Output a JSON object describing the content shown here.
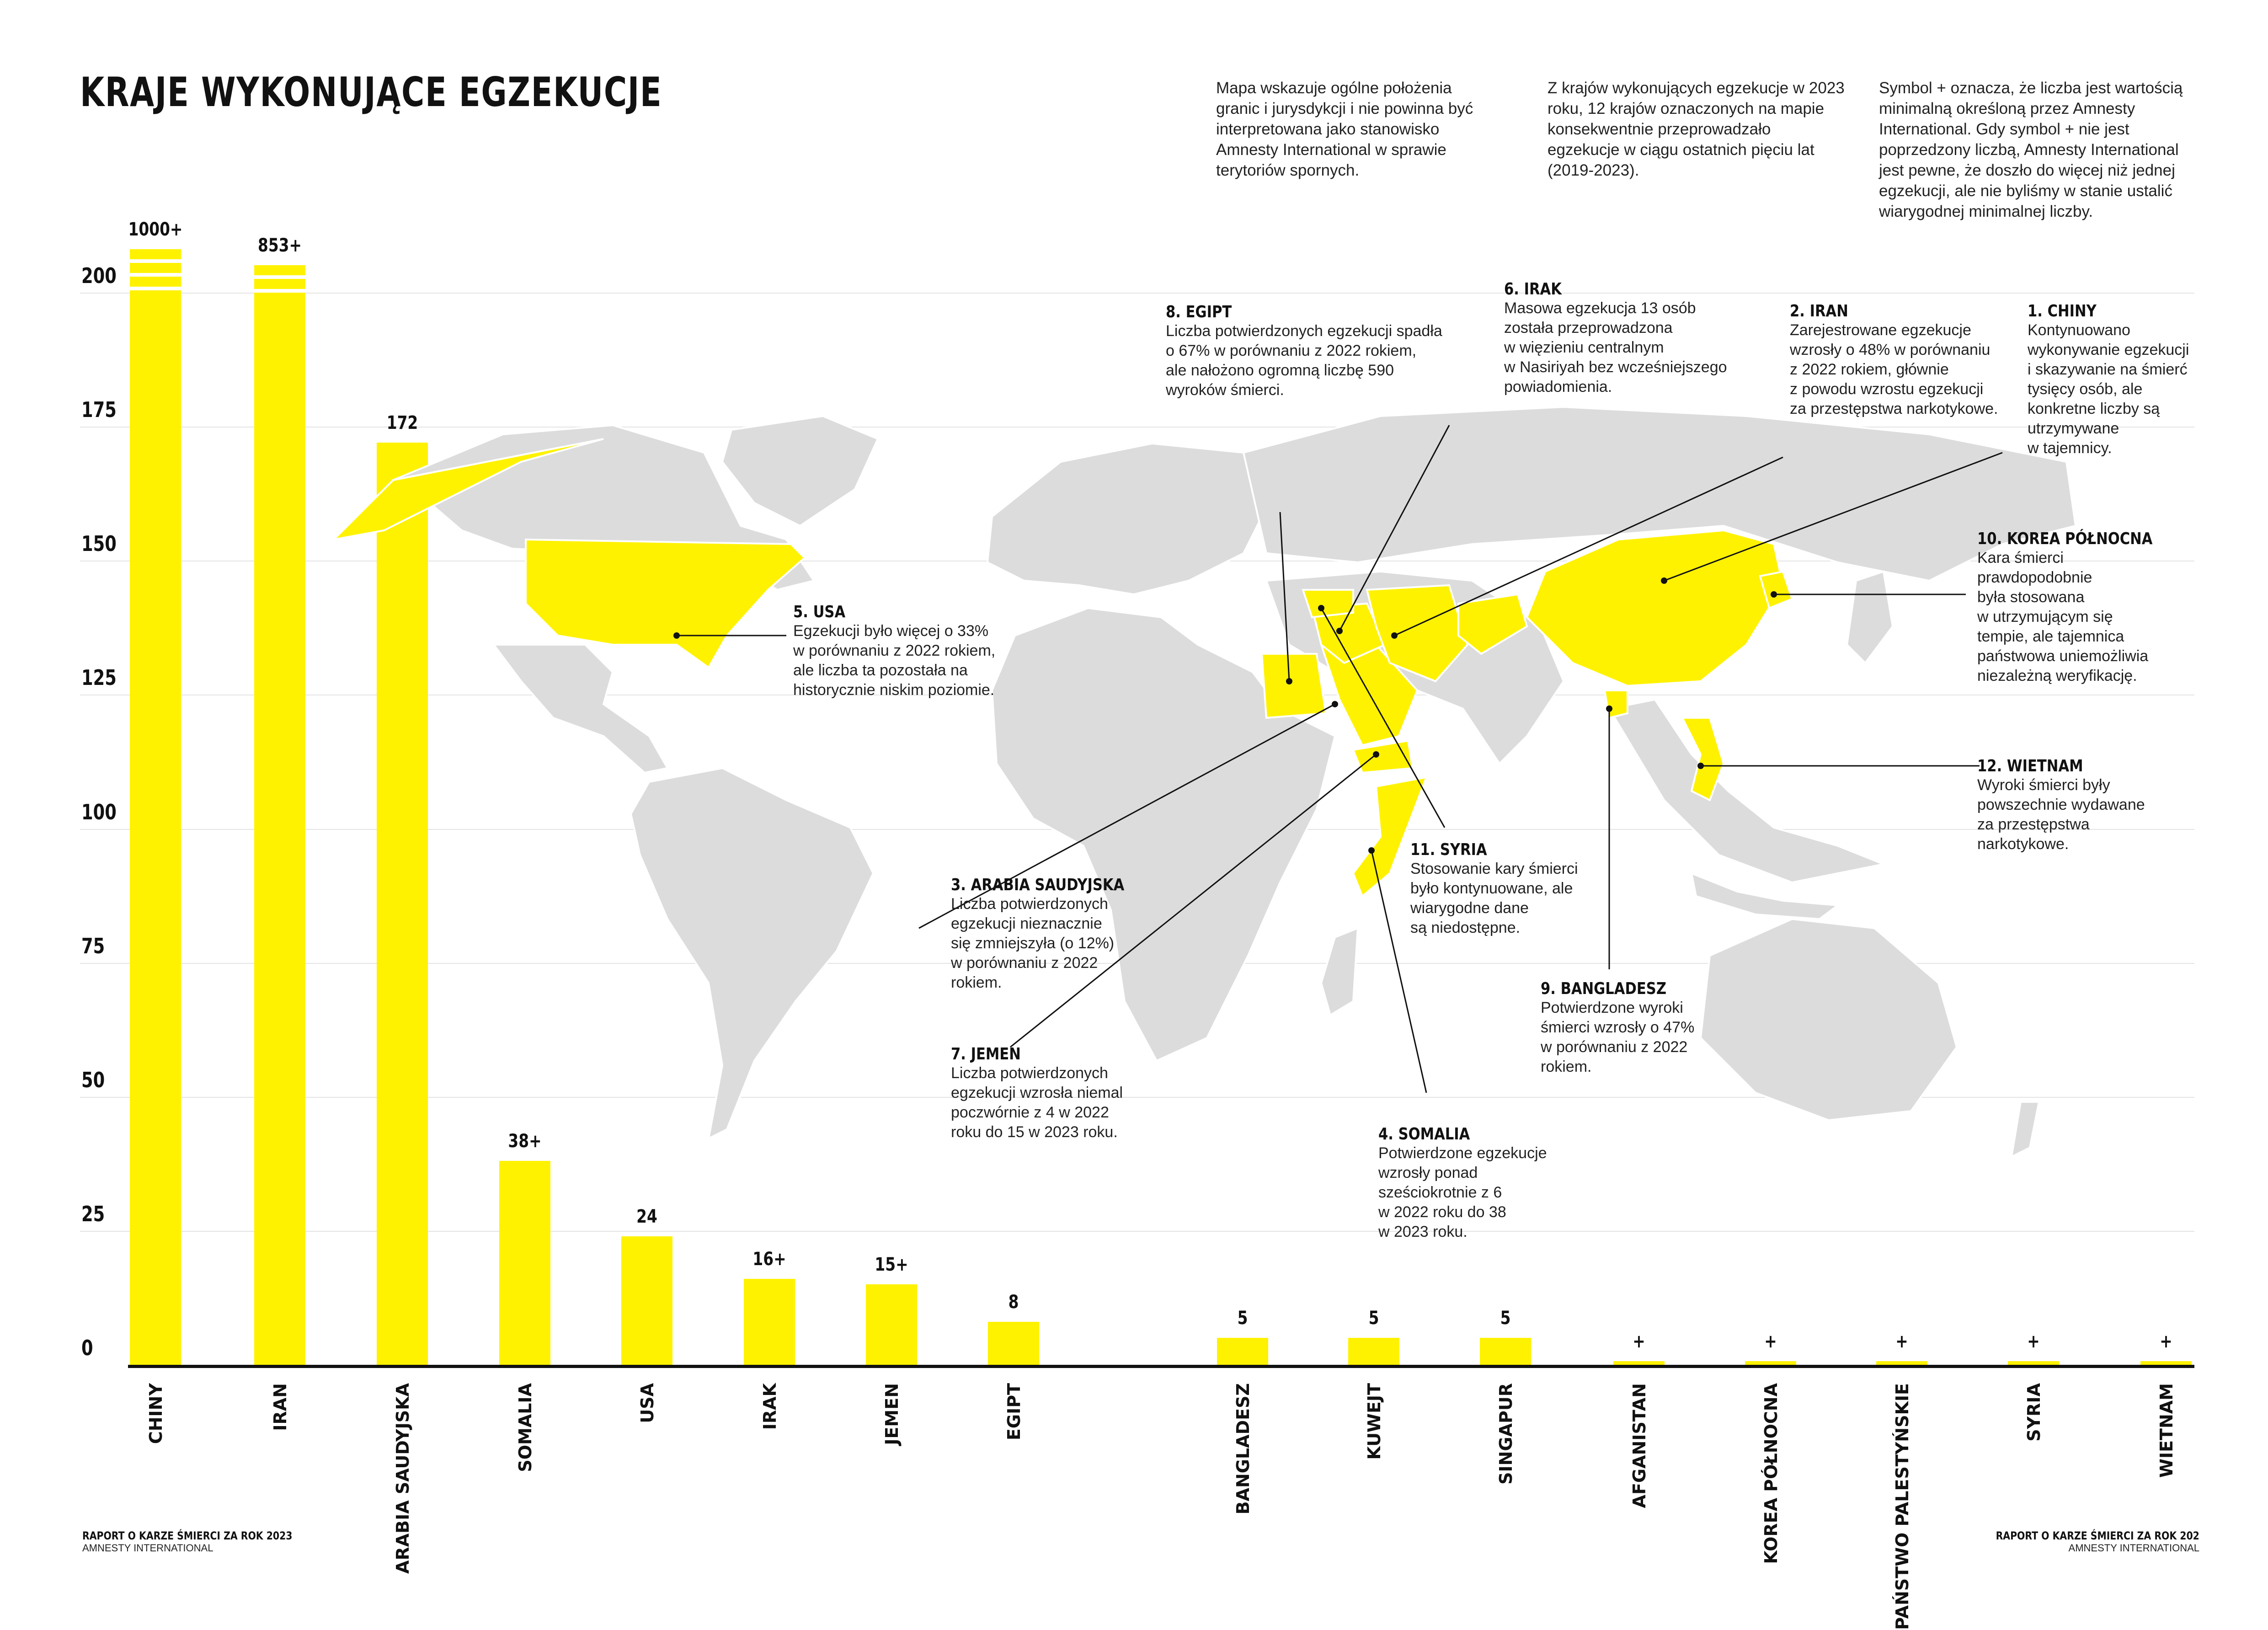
{
  "header": {
    "title": "KRAJE WYKONUJĄCE EGZEKUCJE",
    "notes": [
      "Mapa wskazuje ogólne położenia granic i jurysdykcji i nie powinna być interpretowana jako stanowisko Amnesty International w sprawie terytoriów spornych.",
      "Z krajów wykonujących egzekucje w 2023 roku, 12 krajów oznaczonych na mapie konsekwentnie przeprowadzało egzekucje w ciągu ostatnich pięciu lat (2019-2023).",
      "Symbol + oznacza, że liczba jest wartością minimalną określoną przez Amnesty International. Gdy symbol + nie jest poprzedzony liczbą, Amnesty International jest pewne, że doszło do więcej niż jednej egzekucji, ale nie byliśmy w stanie ustalić wiarygodnej minimalnej liczby."
    ]
  },
  "colors": {
    "accent": "#fff200",
    "land": "#dcdcdc",
    "text": "#111111",
    "grid": "#e4e4e4"
  },
  "chart_data": {
    "type": "bar",
    "ylim": [
      0,
      200
    ],
    "yticks": [
      0,
      25,
      50,
      75,
      100,
      125,
      150,
      175,
      200
    ],
    "grid": true,
    "categories": [
      "CHINY",
      "IRAN",
      "ARABIA SAUDYJSKA",
      "SOMALIA",
      "USA",
      "IRAK",
      "JEMEN",
      "EGIPT",
      "BANGLADESZ",
      "KUWEJT",
      "SINGAPUR",
      "AFGANISTAN",
      "KOREA PÓŁNOCNA",
      "PAŃSTWO PALESTYŃSKIE",
      "SYRIA",
      "WIETNAM"
    ],
    "values": [
      1000,
      853,
      172,
      38,
      24,
      16,
      15,
      8,
      5,
      5,
      5,
      1,
      1,
      1,
      1,
      1
    ],
    "value_labels": [
      "1000+",
      "853+",
      "172",
      "38+",
      "24",
      "16+",
      "15+",
      "8",
      "5",
      "5",
      "5",
      "+",
      "+",
      "+",
      "+",
      "+"
    ],
    "axis_break": "CHINY and IRAN exceed the 200 axis maximum"
  },
  "annotations": [
    {
      "title": "8. EGIPT",
      "text": "Liczba potwierdzonych egzekucji spadła\no 67% w porównaniu z 2022 rokiem,\nale nałożono ogromną liczbę 590\nwyroków śmierci."
    },
    {
      "title": "6. IRAK",
      "text": "Masowa egzekucja 13 osób\nzostała przeprowadzona\nw więzieniu centralnym\nw Nasiriyah bez wcześniejszego\npowiadomienia."
    },
    {
      "title": "2. IRAN",
      "text": "Zarejestrowane egzekucje\nwzrosły o 48% w porównaniu\nz 2022 rokiem, głównie\nz powodu wzrostu egzekucji\nza przestępstwa narkotykowe."
    },
    {
      "title": "1. CHINY",
      "text": "Kontynuowano\nwykonywanie egzekucji\ni skazywanie na śmierć\ntysięcy osób, ale\nkonkretne liczby są\nutrzymywane\nw tajemnicy."
    },
    {
      "title": "10. KOREA PÓŁNOCNA",
      "text": "Kara śmierci\nprawdopodobnie\nbyła stosowana\nw utrzymującym się\ntempie, ale tajemnica\npaństwowa uniemożliwia\nniezależną weryfikację."
    },
    {
      "title": "5. USA",
      "text": "Egzekucji było więcej o 33%\nw porównaniu z 2022 rokiem,\nale liczba ta pozostała na\nhistorycznie niskim poziomie."
    },
    {
      "title": "12. WIETNAM",
      "text": "Wyroki śmierci były\npowszechnie wydawane\nza przestępstwa\nnarkotykowe."
    },
    {
      "title": "3. ARABIA SAUDYJSKA",
      "text": "Liczba potwierdzonych\negzekucji nieznacznie\nsię zmniejszyła (o 12%)\nw porównaniu z 2022\nrokiem."
    },
    {
      "title": "11. SYRIA",
      "text": "Stosowanie kary śmierci\nbyło kontynuowane, ale\nwiarygodne dane\nsą niedostępne."
    },
    {
      "title": "9. BANGLADESZ",
      "text": "Potwierdzone wyroki\nśmierci wzrosły o 47%\nw porównaniu z 2022\nrokiem."
    },
    {
      "title": "7. JEMEN",
      "text": "Liczba potwierdzonych\negzekucji wzrosła niemal\npoczwórnie z 4 w 2022\nroku do 15 w 2023 roku."
    },
    {
      "title": "4. SOMALIA",
      "text": "Potwierdzone egzekucje\nwzrosły ponad\nsześciokrotnie z 6\nw 2022 roku do 38\nw 2023 roku."
    }
  ],
  "footer": {
    "left_title": "RAPORT O KARZE ŚMIERCI ZA ROK 2023",
    "left_sub": "AMNESTY INTERNATIONAL",
    "right_title": "RAPORT O KARZE ŚMIERCI ZA ROK 202",
    "right_sub": "AMNESTY INTERNATIONAL"
  }
}
